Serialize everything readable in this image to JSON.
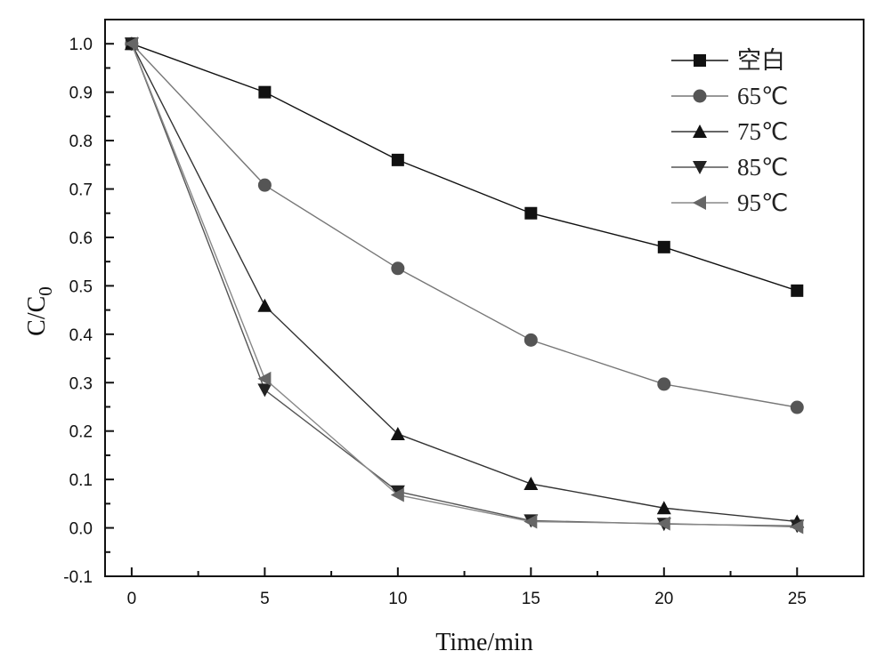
{
  "chart_data": {
    "type": "line",
    "xlabel": "Time/min",
    "ylabel": {
      "main": "C/C",
      "sub": "0"
    },
    "xlim": [
      -1,
      27.5
    ],
    "ylim": [
      -0.1,
      1.05
    ],
    "x_ticks": [
      0,
      5,
      10,
      15,
      20,
      25
    ],
    "y_ticks": [
      -0.1,
      0.0,
      0.1,
      0.2,
      0.3,
      0.4,
      0.5,
      0.6,
      0.7,
      0.8,
      0.9,
      1.0
    ],
    "x_tick_labels": [
      "0",
      "5",
      "10",
      "15",
      "20",
      "25"
    ],
    "y_tick_labels": [
      "-0.1",
      "0.0",
      "0.1",
      "0.2",
      "0.3",
      "0.4",
      "0.5",
      "0.6",
      "0.7",
      "0.8",
      "0.9",
      "1.0"
    ],
    "grid": false,
    "legend_position": "top-right",
    "x": [
      0,
      5,
      10,
      15,
      20,
      25
    ],
    "series": [
      {
        "name": "空白",
        "marker": "square",
        "color": "#111111",
        "line_color": "#111111",
        "values": [
          1.0,
          0.9,
          0.76,
          0.65,
          0.58,
          0.49
        ]
      },
      {
        "name": "65℃",
        "marker": "circle",
        "color": "#555555",
        "line_color": "#777777",
        "values": [
          1.0,
          0.708,
          0.536,
          0.388,
          0.297,
          0.249
        ]
      },
      {
        "name": "75℃",
        "marker": "triangle-up",
        "color": "#111111",
        "line_color": "#333333",
        "values": [
          1.0,
          0.459,
          0.194,
          0.091,
          0.041,
          0.013
        ]
      },
      {
        "name": "85℃",
        "marker": "triangle-down",
        "color": "#222222",
        "line_color": "#555555",
        "values": [
          1.0,
          0.285,
          0.075,
          0.015,
          0.008,
          0.004
        ]
      },
      {
        "name": "95℃",
        "marker": "triangle-left",
        "color": "#666666",
        "line_color": "#888888",
        "values": [
          1.0,
          0.308,
          0.068,
          0.013,
          0.009,
          0.002
        ]
      }
    ]
  }
}
